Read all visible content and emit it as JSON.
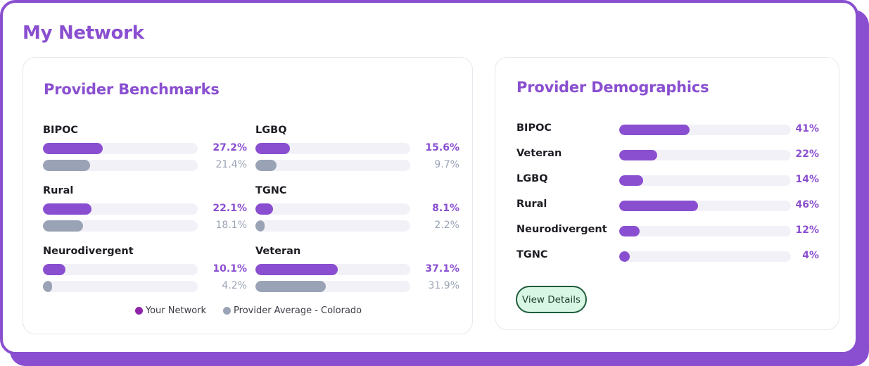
{
  "page": {
    "title": "My Network"
  },
  "benchmarks": {
    "title": "Provider Benchmarks",
    "items": [
      {
        "label": "BIPOC",
        "network": 27.2,
        "network_text": "27.2%",
        "average": 21.4,
        "average_text": "21.4%"
      },
      {
        "label": "LGBQ",
        "network": 15.6,
        "network_text": "15.6%",
        "average": 9.7,
        "average_text": "9.7%"
      },
      {
        "label": "Rural",
        "network": 22.1,
        "network_text": "22.1%",
        "average": 18.1,
        "average_text": "18.1%"
      },
      {
        "label": "TGNC",
        "network": 8.1,
        "network_text": "8.1%",
        "average": 2.2,
        "average_text": "2.2%"
      },
      {
        "label": "Neurodivergent",
        "network": 10.1,
        "network_text": "10.1%",
        "average": 4.2,
        "average_text": "4.2%"
      },
      {
        "label": "Veteran",
        "network": 37.1,
        "network_text": "37.1%",
        "average": 31.9,
        "average_text": "31.9%"
      }
    ],
    "legend": {
      "network": "Your Network",
      "average": "Provider Average - Colorado"
    }
  },
  "demographics": {
    "title": "Provider Demographics",
    "items": [
      {
        "label": "BIPOC",
        "value": 41,
        "value_text": "41%"
      },
      {
        "label": "Veteran",
        "value": 22,
        "value_text": "22%"
      },
      {
        "label": "LGBQ",
        "value": 14,
        "value_text": "14%"
      },
      {
        "label": "Rural",
        "value": 46,
        "value_text": "46%"
      },
      {
        "label": "Neurodivergent",
        "value": 12,
        "value_text": "12%"
      },
      {
        "label": "TGNC",
        "value": 4,
        "value_text": "4%"
      }
    ],
    "button_label": "View Details"
  },
  "colors": {
    "accent": "#8a4fd0",
    "average": "#9aa3b5",
    "legend_network_dot": "#8e24aa",
    "button_bg": "#d7f6e4",
    "button_border": "#1f5b3c"
  }
}
